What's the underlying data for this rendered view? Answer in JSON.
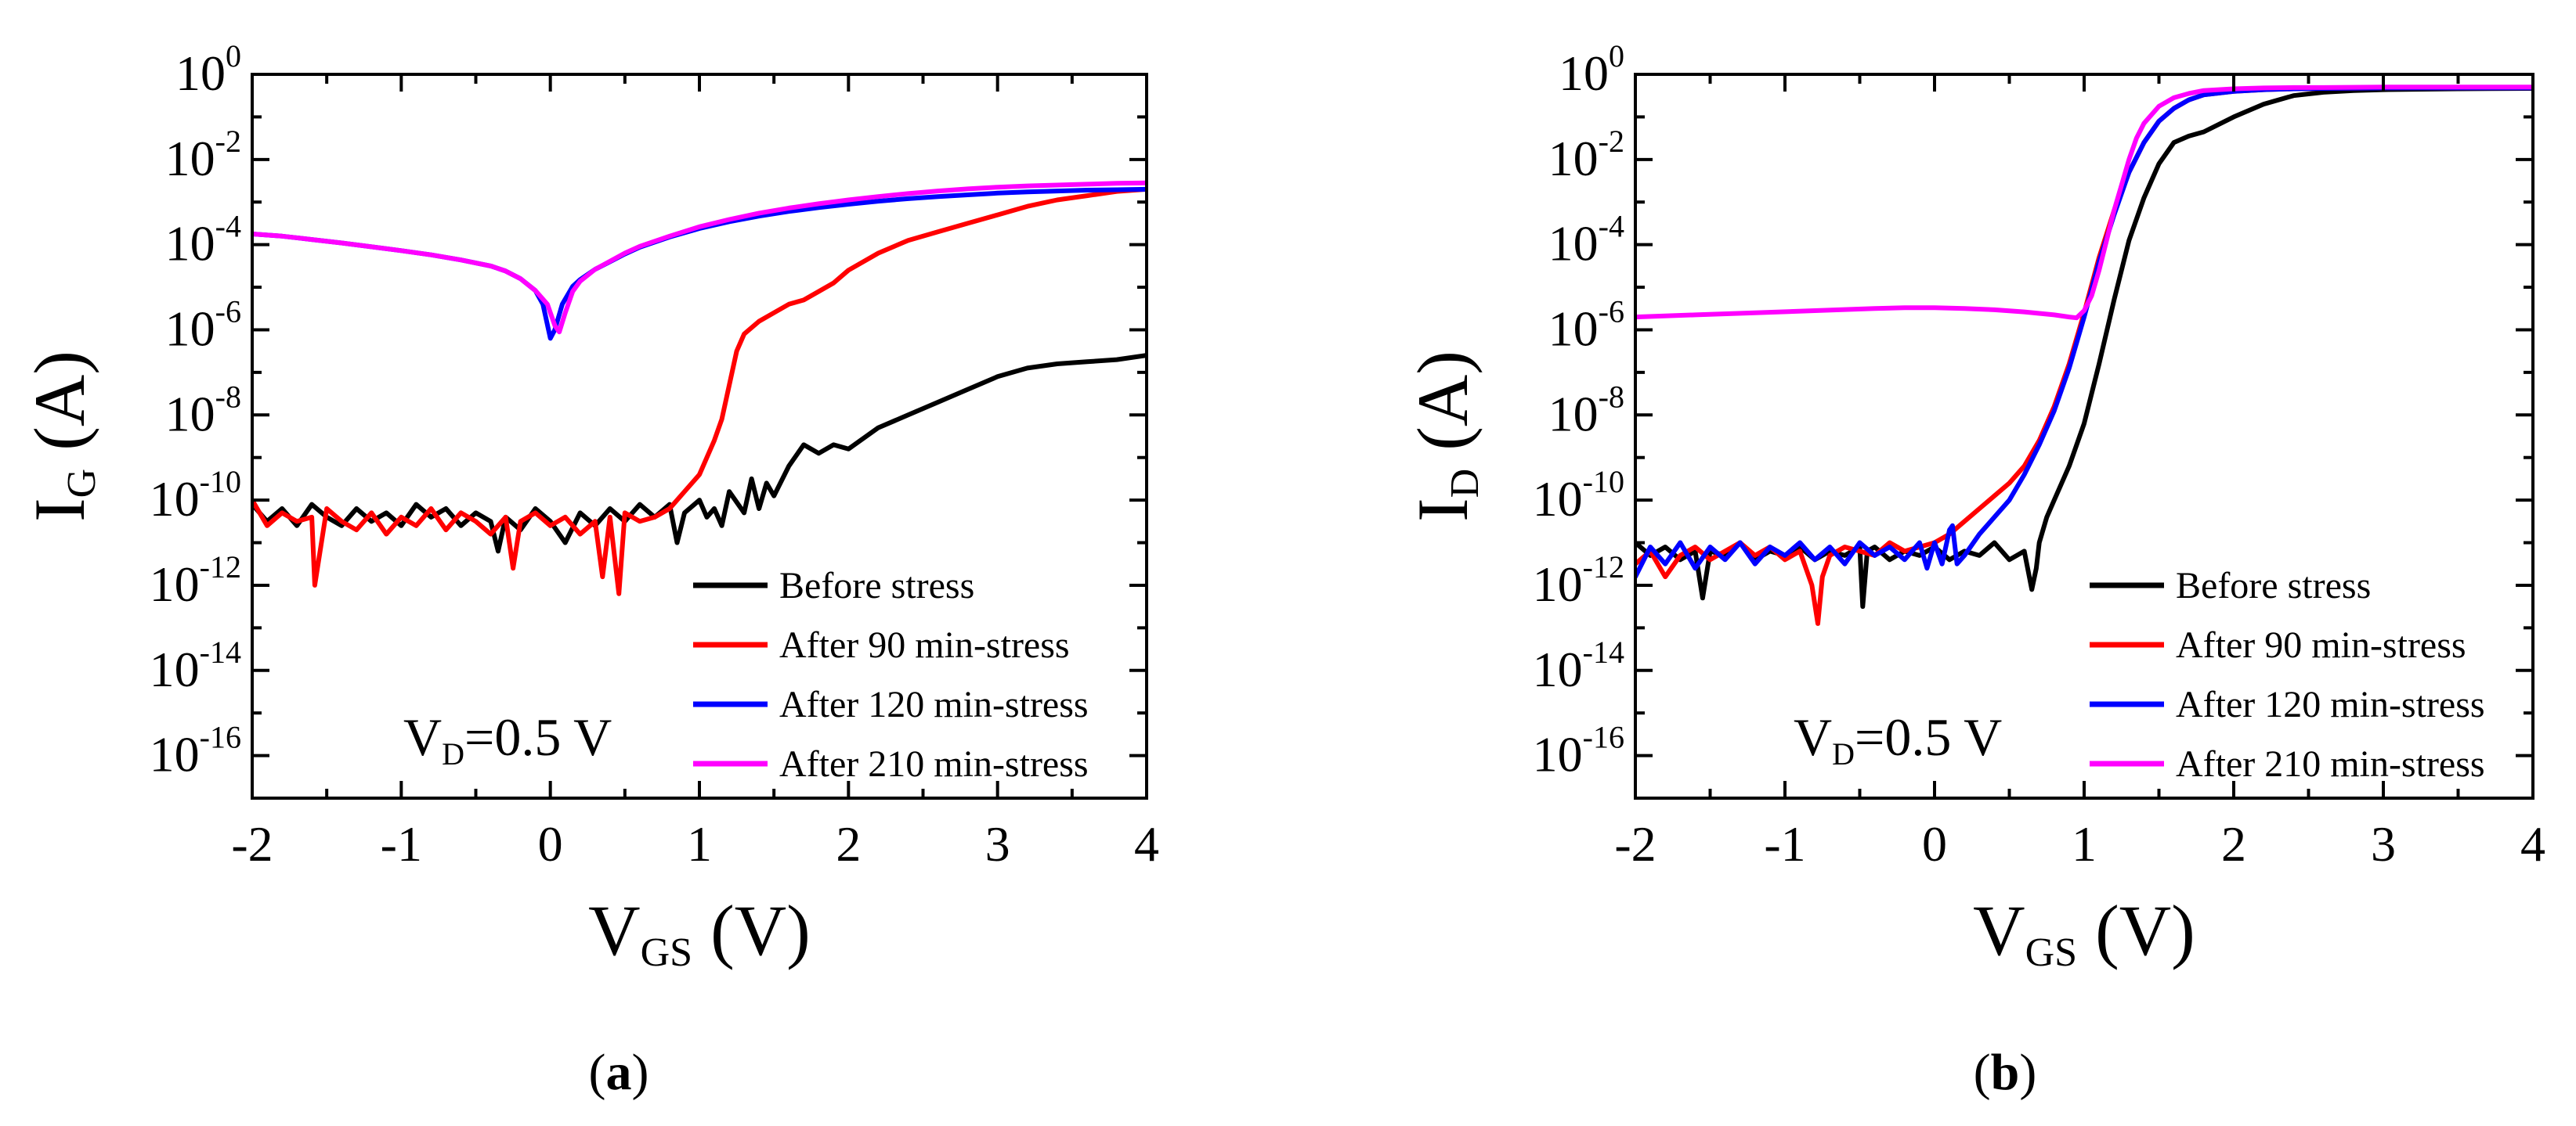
{
  "chart_data": [
    {
      "type": "line",
      "panel_label": "a",
      "ylabel_main": "I",
      "ylabel_sub": "G",
      "ylabel_unit": "(A)",
      "xlabel_main": "V",
      "xlabel_sub": "GS",
      "xlabel_unit": "(V)",
      "xlim": [
        -2,
        4
      ],
      "ylim_log10": [
        -17,
        0
      ],
      "x_ticks": [
        -2,
        -1,
        0,
        1,
        2,
        3,
        4
      ],
      "y_ticks": [
        {
          "base": "10",
          "exp": "0",
          "value": 0
        },
        {
          "base": "10",
          "exp": "-2",
          "value": -2
        },
        {
          "base": "10",
          "exp": "-4",
          "value": -4
        },
        {
          "base": "10",
          "exp": "-6",
          "value": -6
        },
        {
          "base": "10",
          "exp": "-8",
          "value": -8
        },
        {
          "base": "10",
          "exp": "-10",
          "value": -10
        },
        {
          "base": "10",
          "exp": "-12",
          "value": -12
        },
        {
          "base": "10",
          "exp": "-14",
          "value": -14
        },
        {
          "base": "10",
          "exp": "-16",
          "value": -16
        }
      ],
      "annotation": {
        "main": "V",
        "sub": "D",
        "rest": "=0.5 V"
      },
      "legend_position": "bottom-right",
      "series": [
        {
          "name": "Before stress",
          "color": "#000000",
          "x": [
            -2.0,
            -1.9,
            -1.8,
            -1.7,
            -1.6,
            -1.5,
            -1.4,
            -1.3,
            -1.2,
            -1.1,
            -1.0,
            -0.9,
            -0.8,
            -0.7,
            -0.6,
            -0.5,
            -0.4,
            -0.35,
            -0.3,
            -0.2,
            -0.1,
            0.0,
            0.1,
            0.2,
            0.3,
            0.4,
            0.5,
            0.6,
            0.7,
            0.8,
            0.85,
            0.9,
            1.0,
            1.05,
            1.1,
            1.15,
            1.2,
            1.3,
            1.35,
            1.4,
            1.45,
            1.5,
            1.6,
            1.7,
            1.8,
            1.9,
            2.0,
            2.2,
            2.4,
            2.6,
            2.8,
            3.0,
            3.2,
            3.4,
            3.6,
            3.8,
            4.0
          ],
          "log10_y": [
            -10.1,
            -10.5,
            -10.2,
            -10.6,
            -10.1,
            -10.4,
            -10.6,
            -10.2,
            -10.5,
            -10.3,
            -10.6,
            -10.1,
            -10.4,
            -10.2,
            -10.6,
            -10.3,
            -10.5,
            -11.2,
            -10.4,
            -10.7,
            -10.2,
            -10.5,
            -11.0,
            -10.3,
            -10.6,
            -10.2,
            -10.5,
            -10.1,
            -10.4,
            -10.1,
            -11.0,
            -10.3,
            -10.0,
            -10.4,
            -10.2,
            -10.6,
            -9.8,
            -10.3,
            -9.5,
            -10.2,
            -9.6,
            -9.9,
            -9.2,
            -8.7,
            -8.9,
            -8.7,
            -8.8,
            -8.3,
            -8.0,
            -7.7,
            -7.4,
            -7.1,
            -6.9,
            -6.8,
            -6.75,
            -6.7,
            -6.6
          ]
        },
        {
          "name": "After 90 min-stress",
          "color": "#ff0000",
          "x": [
            -2.0,
            -1.9,
            -1.8,
            -1.7,
            -1.6,
            -1.58,
            -1.5,
            -1.4,
            -1.3,
            -1.2,
            -1.1,
            -1.0,
            -0.9,
            -0.8,
            -0.7,
            -0.6,
            -0.5,
            -0.4,
            -0.3,
            -0.25,
            -0.2,
            -0.1,
            0.0,
            0.1,
            0.2,
            0.3,
            0.35,
            0.4,
            0.46,
            0.5,
            0.6,
            0.7,
            0.8,
            0.9,
            1.0,
            1.05,
            1.1,
            1.15,
            1.2,
            1.25,
            1.3,
            1.4,
            1.5,
            1.6,
            1.7,
            1.8,
            1.9,
            2.0,
            2.2,
            2.4,
            2.6,
            2.8,
            3.0,
            3.2,
            3.4,
            3.6,
            3.8,
            4.0
          ],
          "log10_y": [
            -10.0,
            -10.6,
            -10.3,
            -10.5,
            -10.4,
            -12.0,
            -10.2,
            -10.5,
            -10.7,
            -10.3,
            -10.8,
            -10.4,
            -10.6,
            -10.2,
            -10.7,
            -10.3,
            -10.5,
            -10.8,
            -10.4,
            -11.6,
            -10.5,
            -10.3,
            -10.6,
            -10.4,
            -10.8,
            -10.5,
            -11.8,
            -10.4,
            -12.2,
            -10.3,
            -10.5,
            -10.4,
            -10.2,
            -9.8,
            -9.4,
            -9.0,
            -8.6,
            -8.1,
            -7.3,
            -6.5,
            -6.1,
            -5.8,
            -5.6,
            -5.4,
            -5.3,
            -5.1,
            -4.9,
            -4.6,
            -4.2,
            -3.9,
            -3.7,
            -3.5,
            -3.3,
            -3.1,
            -2.95,
            -2.85,
            -2.75,
            -2.7
          ]
        },
        {
          "name": "After 120 min-stress",
          "color": "#0000ff",
          "x": [
            -2.0,
            -1.8,
            -1.6,
            -1.4,
            -1.2,
            -1.0,
            -0.8,
            -0.6,
            -0.4,
            -0.3,
            -0.2,
            -0.1,
            -0.05,
            0.0,
            0.03,
            0.08,
            0.15,
            0.2,
            0.3,
            0.4,
            0.5,
            0.6,
            0.8,
            1.0,
            1.2,
            1.4,
            1.6,
            1.8,
            2.0,
            2.2,
            2.4,
            2.6,
            2.8,
            3.0,
            3.2,
            3.4,
            3.6,
            3.8,
            4.0
          ],
          "log10_y": [
            -3.75,
            -3.8,
            -3.88,
            -3.96,
            -4.05,
            -4.14,
            -4.24,
            -4.36,
            -4.5,
            -4.62,
            -4.8,
            -5.08,
            -5.4,
            -6.2,
            -6.0,
            -5.4,
            -4.98,
            -4.82,
            -4.58,
            -4.4,
            -4.22,
            -4.06,
            -3.82,
            -3.62,
            -3.46,
            -3.33,
            -3.22,
            -3.13,
            -3.05,
            -2.98,
            -2.92,
            -2.87,
            -2.83,
            -2.79,
            -2.76,
            -2.74,
            -2.72,
            -2.71,
            -2.7
          ]
        },
        {
          "name": "After 210 min-stress",
          "color": "#ff00ff",
          "x": [
            -2.0,
            -1.8,
            -1.6,
            -1.4,
            -1.2,
            -1.0,
            -0.8,
            -0.6,
            -0.4,
            -0.3,
            -0.2,
            -0.1,
            -0.02,
            0.03,
            0.06,
            0.1,
            0.15,
            0.2,
            0.3,
            0.4,
            0.5,
            0.6,
            0.8,
            1.0,
            1.2,
            1.4,
            1.6,
            1.8,
            2.0,
            2.2,
            2.4,
            2.6,
            2.8,
            3.0,
            3.2,
            3.4,
            3.6,
            3.8,
            4.0
          ],
          "log10_y": [
            -3.75,
            -3.8,
            -3.88,
            -3.96,
            -4.05,
            -4.14,
            -4.24,
            -4.36,
            -4.5,
            -4.62,
            -4.8,
            -5.08,
            -5.4,
            -5.9,
            -6.05,
            -5.6,
            -5.1,
            -4.86,
            -4.58,
            -4.39,
            -4.2,
            -4.04,
            -3.8,
            -3.58,
            -3.41,
            -3.26,
            -3.14,
            -3.04,
            -2.95,
            -2.87,
            -2.8,
            -2.74,
            -2.69,
            -2.65,
            -2.62,
            -2.6,
            -2.58,
            -2.56,
            -2.55
          ]
        }
      ]
    },
    {
      "type": "line",
      "panel_label": "b",
      "ylabel_main": "I",
      "ylabel_sub": "D",
      "ylabel_unit": "(A)",
      "xlabel_main": "V",
      "xlabel_sub": "GS",
      "xlabel_unit": "(V)",
      "xlim": [
        -2,
        4
      ],
      "ylim_log10": [
        -17,
        0
      ],
      "x_ticks": [
        -2,
        -1,
        0,
        1,
        2,
        3,
        4
      ],
      "y_ticks": [
        {
          "base": "10",
          "exp": "0",
          "value": 0
        },
        {
          "base": "10",
          "exp": "-2",
          "value": -2
        },
        {
          "base": "10",
          "exp": "-4",
          "value": -4
        },
        {
          "base": "10",
          "exp": "-6",
          "value": -6
        },
        {
          "base": "10",
          "exp": "-8",
          "value": -8
        },
        {
          "base": "10",
          "exp": "-10",
          "value": -10
        },
        {
          "base": "10",
          "exp": "-12",
          "value": -12
        },
        {
          "base": "10",
          "exp": "-14",
          "value": -14
        },
        {
          "base": "10",
          "exp": "-16",
          "value": -16
        }
      ],
      "annotation": {
        "main": "V",
        "sub": "D",
        "rest": "=0.5 V"
      },
      "legend_position": "bottom-right",
      "series": [
        {
          "name": "Before stress",
          "color": "#000000",
          "x": [
            -2.0,
            -1.9,
            -1.8,
            -1.7,
            -1.6,
            -1.55,
            -1.5,
            -1.4,
            -1.3,
            -1.2,
            -1.1,
            -1.0,
            -0.9,
            -0.8,
            -0.7,
            -0.6,
            -0.5,
            -0.48,
            -0.45,
            -0.4,
            -0.3,
            -0.2,
            -0.1,
            0.0,
            0.1,
            0.2,
            0.3,
            0.4,
            0.5,
            0.6,
            0.65,
            0.68,
            0.7,
            0.75,
            0.8,
            0.85,
            0.9,
            1.0,
            1.1,
            1.2,
            1.3,
            1.4,
            1.5,
            1.6,
            1.7,
            1.8,
            2.0,
            2.2,
            2.4,
            2.6,
            2.8,
            3.0,
            3.5,
            4.0
          ],
          "log10_y": [
            -11.0,
            -11.3,
            -11.1,
            -11.4,
            -11.2,
            -12.3,
            -11.2,
            -11.3,
            -11.0,
            -11.4,
            -11.2,
            -11.3,
            -11.1,
            -11.4,
            -11.2,
            -11.3,
            -11.1,
            -12.5,
            -11.2,
            -11.1,
            -11.4,
            -11.2,
            -11.3,
            -11.1,
            -11.4,
            -11.2,
            -11.3,
            -11.0,
            -11.4,
            -11.2,
            -12.1,
            -11.6,
            -11.0,
            -10.4,
            -10.0,
            -9.6,
            -9.2,
            -8.2,
            -6.8,
            -5.3,
            -3.9,
            -2.9,
            -2.1,
            -1.6,
            -1.45,
            -1.35,
            -1.0,
            -0.7,
            -0.5,
            -0.42,
            -0.38,
            -0.36,
            -0.34,
            -0.33
          ]
        },
        {
          "name": "After 90 min-stress",
          "color": "#ff0000",
          "x": [
            -2.0,
            -1.9,
            -1.8,
            -1.7,
            -1.6,
            -1.5,
            -1.4,
            -1.3,
            -1.2,
            -1.1,
            -1.0,
            -0.9,
            -0.82,
            -0.78,
            -0.75,
            -0.7,
            -0.6,
            -0.5,
            -0.4,
            -0.3,
            -0.2,
            -0.1,
            0.0,
            0.1,
            0.2,
            0.3,
            0.4,
            0.5,
            0.6,
            0.7,
            0.8,
            0.9,
            1.0,
            1.1,
            1.2,
            1.3,
            1.4,
            1.5,
            1.6,
            1.7,
            1.8,
            2.0,
            2.2,
            2.4,
            2.6,
            3.0,
            3.5,
            4.0
          ],
          "log10_y": [
            -11.5,
            -11.2,
            -11.8,
            -11.3,
            -11.1,
            -11.4,
            -11.2,
            -11.0,
            -11.3,
            -11.1,
            -11.4,
            -11.2,
            -12.0,
            -12.9,
            -11.8,
            -11.3,
            -11.1,
            -11.2,
            -11.3,
            -11.0,
            -11.2,
            -11.1,
            -11.0,
            -10.8,
            -10.5,
            -10.2,
            -9.9,
            -9.6,
            -9.2,
            -8.6,
            -7.8,
            -6.8,
            -5.6,
            -4.3,
            -3.2,
            -2.3,
            -1.6,
            -1.1,
            -0.8,
            -0.6,
            -0.48,
            -0.4,
            -0.36,
            -0.34,
            -0.33,
            -0.32,
            -0.32,
            -0.32
          ]
        },
        {
          "name": "After 120 min-stress",
          "color": "#0000ff",
          "x": [
            -2.0,
            -1.9,
            -1.8,
            -1.7,
            -1.6,
            -1.5,
            -1.4,
            -1.3,
            -1.2,
            -1.1,
            -1.0,
            -0.9,
            -0.8,
            -0.7,
            -0.6,
            -0.5,
            -0.4,
            -0.3,
            -0.2,
            -0.1,
            -0.05,
            0.0,
            0.05,
            0.1,
            0.12,
            0.15,
            0.2,
            0.3,
            0.4,
            0.5,
            0.6,
            0.7,
            0.8,
            0.9,
            1.0,
            1.1,
            1.2,
            1.3,
            1.4,
            1.5,
            1.6,
            1.7,
            1.8,
            2.0,
            2.2,
            2.4,
            2.6,
            3.0,
            3.5,
            4.0
          ],
          "log10_y": [
            -11.8,
            -11.1,
            -11.5,
            -11.0,
            -11.6,
            -11.1,
            -11.4,
            -11.0,
            -11.5,
            -11.1,
            -11.3,
            -11.0,
            -11.4,
            -11.1,
            -11.5,
            -11.0,
            -11.3,
            -11.1,
            -11.4,
            -11.0,
            -11.6,
            -11.0,
            -11.5,
            -10.7,
            -10.6,
            -11.5,
            -11.3,
            -10.8,
            -10.4,
            -10.0,
            -9.4,
            -8.7,
            -7.9,
            -6.9,
            -5.7,
            -4.4,
            -3.3,
            -2.3,
            -1.6,
            -1.1,
            -0.8,
            -0.6,
            -0.48,
            -0.4,
            -0.36,
            -0.34,
            -0.33,
            -0.32,
            -0.32,
            -0.32
          ]
        },
        {
          "name": "After 210 min-stress",
          "color": "#ff00ff",
          "x": [
            -2.0,
            -1.6,
            -1.2,
            -0.8,
            -0.4,
            -0.2,
            0.0,
            0.2,
            0.4,
            0.6,
            0.8,
            0.9,
            0.95,
            1.0,
            1.05,
            1.1,
            1.15,
            1.2,
            1.25,
            1.3,
            1.35,
            1.4,
            1.5,
            1.6,
            1.7,
            1.8,
            2.0,
            2.2,
            2.4,
            2.6,
            3.0,
            3.5,
            4.0
          ],
          "log10_y": [
            -5.7,
            -5.65,
            -5.6,
            -5.55,
            -5.5,
            -5.48,
            -5.48,
            -5.5,
            -5.53,
            -5.58,
            -5.65,
            -5.7,
            -5.72,
            -5.55,
            -5.2,
            -4.6,
            -3.9,
            -3.2,
            -2.6,
            -2.0,
            -1.5,
            -1.15,
            -0.75,
            -0.55,
            -0.45,
            -0.38,
            -0.34,
            -0.32,
            -0.31,
            -0.31,
            -0.3,
            -0.3,
            -0.3
          ]
        }
      ]
    }
  ]
}
